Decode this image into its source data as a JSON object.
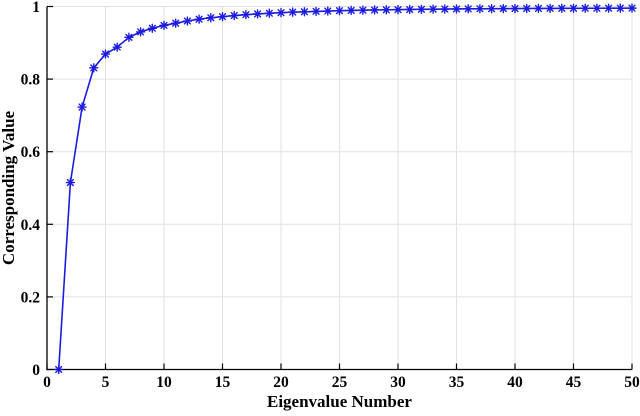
{
  "figure": {
    "background": "#ffffff",
    "title": ""
  },
  "chart_data": {
    "type": "line",
    "title": "",
    "xlabel": "Eigenvalue Number",
    "ylabel": "Corresponding Value",
    "xlim": [
      0,
      50
    ],
    "ylim": [
      0,
      1
    ],
    "grid": true,
    "legend": null,
    "xticks": [
      0,
      5,
      10,
      15,
      20,
      25,
      30,
      35,
      40,
      45,
      50
    ],
    "xtick_labels": [
      "0",
      "5",
      "10",
      "15",
      "20",
      "25",
      "30",
      "35",
      "40",
      "45",
      "50"
    ],
    "yticks": [
      0,
      0.2,
      0.4,
      0.6,
      0.8,
      1
    ],
    "ytick_labels": [
      "0",
      "0.2",
      "0.4",
      "0.6",
      "0.8",
      "1"
    ],
    "colors": {
      "line": "#1c1ce0",
      "grid": "#e2e2e2",
      "axis": "#000000",
      "text": "#000000"
    },
    "series": [
      {
        "name": "eigenvalue-cumulative-curve",
        "marker": "asterisk",
        "color": "#1c1ce0",
        "x": [
          1,
          2,
          3,
          4,
          5,
          6,
          7,
          8,
          9,
          10,
          11,
          12,
          13,
          14,
          15,
          16,
          17,
          18,
          19,
          20,
          21,
          22,
          23,
          24,
          25,
          26,
          27,
          28,
          29,
          30,
          31,
          32,
          33,
          34,
          35,
          36,
          37,
          38,
          39,
          40,
          41,
          42,
          43,
          44,
          45,
          46,
          47,
          48,
          49,
          50
        ],
        "y": [
          0.0,
          0.515,
          0.723,
          0.831,
          0.869,
          0.888,
          0.915,
          0.93,
          0.94,
          0.948,
          0.954,
          0.96,
          0.965,
          0.969,
          0.972,
          0.975,
          0.9775,
          0.9795,
          0.9815,
          0.983,
          0.9845,
          0.9855,
          0.9865,
          0.9875,
          0.9885,
          0.9892,
          0.9898,
          0.9904,
          0.9909,
          0.9914,
          0.9918,
          0.9922,
          0.9926,
          0.9929,
          0.9932,
          0.9935,
          0.9937,
          0.9939,
          0.9941,
          0.9943,
          0.9945,
          0.9947,
          0.9948,
          0.9949,
          0.995,
          0.9951,
          0.9952,
          0.9953,
          0.9954,
          0.9955
        ]
      }
    ]
  }
}
